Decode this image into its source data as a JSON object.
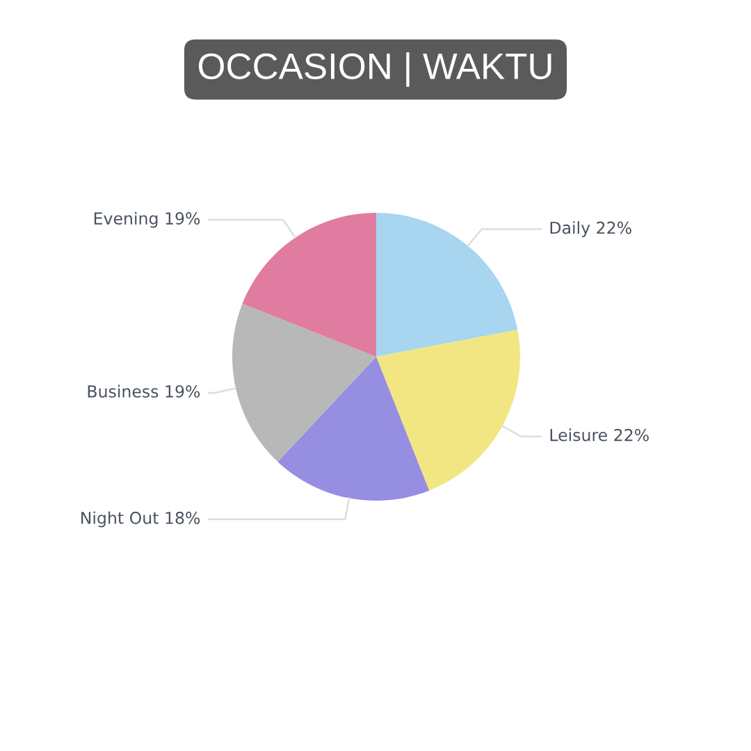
{
  "chart_data": {
    "type": "pie",
    "title": "OCCASION | WAKTU",
    "categories": [
      "Daily",
      "Leisure",
      "Night Out",
      "Business",
      "Evening"
    ],
    "values": [
      22,
      22,
      18,
      19,
      19
    ],
    "value_labels": [
      "22%",
      "22%",
      "18%",
      "19%",
      "19%"
    ],
    "colors": [
      "#a8d5f0",
      "#f2e682",
      "#968ee0",
      "#b8b8b8",
      "#e07ca0"
    ],
    "legend": false
  }
}
